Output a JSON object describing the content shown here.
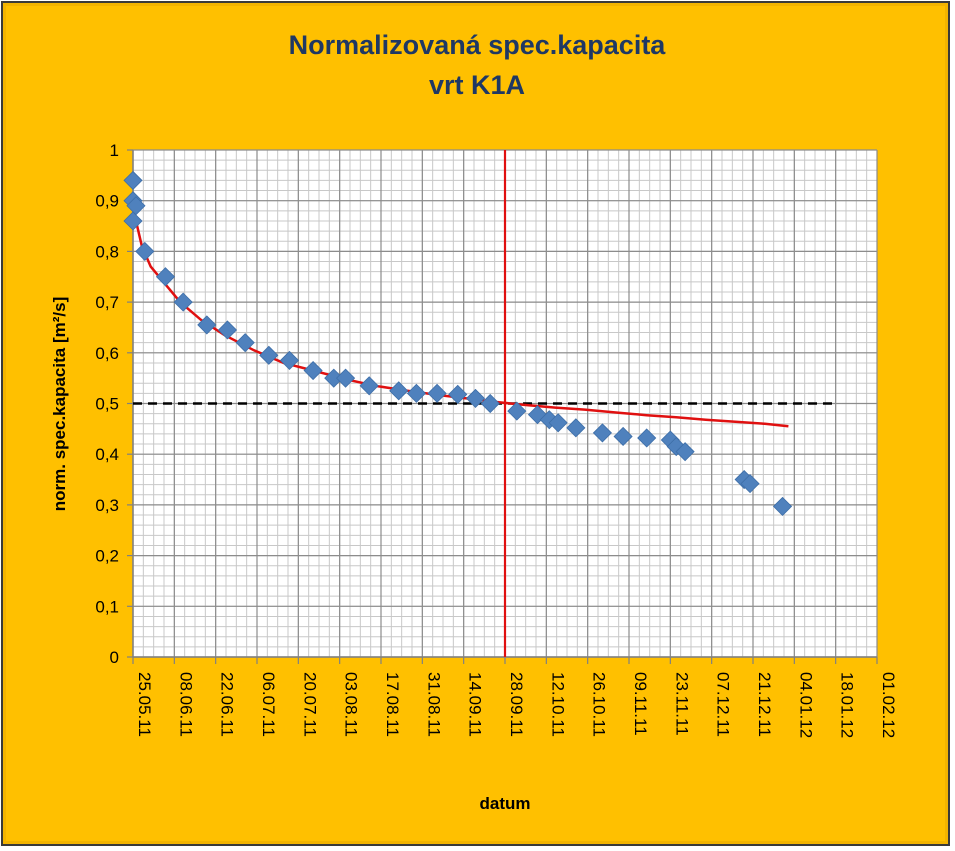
{
  "chart_data": {
    "type": "scatter",
    "title": [
      "Normalizovaná spec.kapacita",
      "vrt K1A"
    ],
    "xlabel": "datum",
    "ylabel": "norm. spec.kapacita [m²/s]",
    "x_tick_labels": [
      "25.05.11",
      "08.06.11",
      "22.06.11",
      "06.07.11",
      "20.07.11",
      "03.08.11",
      "17.08.11",
      "31.08.11",
      "14.09.11",
      "28.09.11",
      "12.10.11",
      "26.10.11",
      "09.11.11",
      "23.11.11",
      "07.12.11",
      "21.12.11",
      "04.01.12",
      "18.01.12",
      "01.02.12"
    ],
    "y_tick_labels": [
      "0",
      "0,1",
      "0,2",
      "0,3",
      "0,4",
      "0,5",
      "0,6",
      "0,7",
      "0,8",
      "0,9",
      "1"
    ],
    "xlim": [
      "25.05.11",
      "01.02.12"
    ],
    "ylim": [
      0,
      1
    ],
    "grid": true,
    "reference_lines": {
      "horizontal_y": 0.5,
      "vertical_x": "28.09.11"
    },
    "colors": {
      "points": "#4f81bd",
      "trend": "#e01010",
      "background": "#ffc000",
      "title": "#1f3864"
    },
    "series": [
      {
        "type": "scatter",
        "points": [
          [
            "25.05.11",
            0.94
          ],
          [
            "25.05.11",
            0.9
          ],
          [
            "26.05.11",
            0.89
          ],
          [
            "25.05.11",
            0.86
          ],
          [
            "29.05.11",
            0.8
          ],
          [
            "05.06.11",
            0.75
          ],
          [
            "11.06.11",
            0.7
          ],
          [
            "19.06.11",
            0.655
          ],
          [
            "26.06.11",
            0.645
          ],
          [
            "02.07.11",
            0.62
          ],
          [
            "10.07.11",
            0.595
          ],
          [
            "17.07.11",
            0.585
          ],
          [
            "25.07.11",
            0.565
          ],
          [
            "01.08.11",
            0.55
          ],
          [
            "05.08.11",
            0.55
          ],
          [
            "13.08.11",
            0.535
          ],
          [
            "23.08.11",
            0.525
          ],
          [
            "29.08.11",
            0.52
          ],
          [
            "05.09.11",
            0.52
          ],
          [
            "12.09.11",
            0.518
          ],
          [
            "18.09.11",
            0.51
          ],
          [
            "23.09.11",
            0.5
          ],
          [
            "02.10.11",
            0.485
          ],
          [
            "09.10.11",
            0.478
          ],
          [
            "13.10.11",
            0.468
          ],
          [
            "16.10.11",
            0.462
          ],
          [
            "22.10.11",
            0.452
          ],
          [
            "31.10.11",
            0.442
          ],
          [
            "07.11.11",
            0.435
          ],
          [
            "15.11.11",
            0.432
          ],
          [
            "23.11.11",
            0.428
          ],
          [
            "25.11.11",
            0.415
          ],
          [
            "28.11.11",
            0.405
          ],
          [
            "18.12.11",
            0.35
          ],
          [
            "20.12.11",
            0.342
          ],
          [
            "31.12.11",
            0.297
          ]
        ]
      },
      {
        "type": "line",
        "points": [
          [
            "25.05.11",
            0.89
          ],
          [
            "26.05.11",
            0.86
          ],
          [
            "28.05.11",
            0.81
          ],
          [
            "31.05.11",
            0.77
          ],
          [
            "05.06.11",
            0.735
          ],
          [
            "10.06.11",
            0.7
          ],
          [
            "17.06.11",
            0.665
          ],
          [
            "25.06.11",
            0.635
          ],
          [
            "05.07.11",
            0.605
          ],
          [
            "15.07.11",
            0.58
          ],
          [
            "25.07.11",
            0.565
          ],
          [
            "05.08.11",
            0.548
          ],
          [
            "15.08.11",
            0.535
          ],
          [
            "25.08.11",
            0.526
          ],
          [
            "05.09.11",
            0.517
          ],
          [
            "15.09.11",
            0.51
          ],
          [
            "25.09.11",
            0.503
          ],
          [
            "05.10.11",
            0.497
          ],
          [
            "15.10.11",
            0.492
          ],
          [
            "25.10.11",
            0.488
          ],
          [
            "05.11.11",
            0.482
          ],
          [
            "15.11.11",
            0.477
          ],
          [
            "25.11.11",
            0.473
          ],
          [
            "05.12.11",
            0.468
          ],
          [
            "15.12.11",
            0.464
          ],
          [
            "25.12.11",
            0.46
          ],
          [
            "02.01.12",
            0.455
          ]
        ]
      }
    ]
  }
}
